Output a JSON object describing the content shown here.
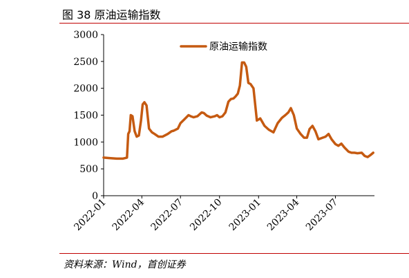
{
  "header": {
    "title": "图 38 原油运输指数"
  },
  "footer": {
    "source": "资料来源：Wind，首创证券"
  },
  "chart_data": {
    "type": "line",
    "title": "",
    "xlabel": "",
    "ylabel": "",
    "ylim": [
      0,
      3000
    ],
    "y_ticks": [
      "3000",
      "2500",
      "2000",
      "1500",
      "1000",
      "500",
      "0"
    ],
    "x_ticks": [
      "2022-01",
      "2022-04",
      "2022-07",
      "2022-10",
      "2023-01",
      "2023-04",
      "2023-07"
    ],
    "grid": false,
    "legend_position": "top-center",
    "colors": {
      "series": "#c55a11",
      "accent": "#c00000"
    },
    "series": [
      {
        "name": "原油运输指数",
        "x": [
          "2022-01-01",
          "2022-01-15",
          "2022-02-01",
          "2022-02-15",
          "2022-02-25",
          "2022-02-28",
          "2022-03-03",
          "2022-03-06",
          "2022-03-10",
          "2022-03-15",
          "2022-03-20",
          "2022-03-25",
          "2022-03-30",
          "2022-04-03",
          "2022-04-07",
          "2022-04-12",
          "2022-04-18",
          "2022-04-25",
          "2022-05-01",
          "2022-05-10",
          "2022-05-20",
          "2022-06-01",
          "2022-06-10",
          "2022-06-15",
          "2022-06-25",
          "2022-07-01",
          "2022-07-10",
          "2022-07-20",
          "2022-07-25",
          "2022-08-01",
          "2022-08-10",
          "2022-08-20",
          "2022-08-25",
          "2022-09-01",
          "2022-09-10",
          "2022-09-20",
          "2022-09-25",
          "2022-10-01",
          "2022-10-08",
          "2022-10-15",
          "2022-10-22",
          "2022-10-28",
          "2022-11-03",
          "2022-11-08",
          "2022-11-13",
          "2022-11-18",
          "2022-11-23",
          "2022-11-28",
          "2022-12-03",
          "2022-12-08",
          "2022-12-13",
          "2022-12-20",
          "2022-12-28",
          "2023-01-05",
          "2023-01-15",
          "2023-01-25",
          "2023-02-05",
          "2023-02-15",
          "2023-02-25",
          "2023-03-05",
          "2023-03-12",
          "2023-03-18",
          "2023-03-25",
          "2023-04-01",
          "2023-04-10",
          "2023-04-18",
          "2023-04-25",
          "2023-05-01",
          "2023-05-08",
          "2023-05-15",
          "2023-05-22",
          "2023-06-01",
          "2023-06-08",
          "2023-06-15",
          "2023-06-22",
          "2023-07-01",
          "2023-07-08",
          "2023-07-15",
          "2023-07-22",
          "2023-08-01",
          "2023-08-08",
          "2023-08-15",
          "2023-08-22",
          "2023-09-01",
          "2023-09-08",
          "2023-09-15",
          "2023-09-22",
          "2023-09-28"
        ],
        "values": [
          710,
          700,
          690,
          690,
          710,
          1150,
          1200,
          1500,
          1480,
          1200,
          1100,
          1120,
          1400,
          1700,
          1740,
          1680,
          1250,
          1180,
          1150,
          1100,
          1100,
          1150,
          1200,
          1210,
          1250,
          1350,
          1420,
          1500,
          1480,
          1460,
          1480,
          1550,
          1540,
          1490,
          1460,
          1480,
          1500,
          1460,
          1480,
          1550,
          1750,
          1800,
          1810,
          1850,
          1900,
          2050,
          2480,
          2480,
          2400,
          2100,
          2080,
          2000,
          1400,
          1440,
          1300,
          1230,
          1180,
          1350,
          1450,
          1500,
          1550,
          1630,
          1500,
          1250,
          1150,
          1080,
          1080,
          1240,
          1300,
          1200,
          1050,
          1080,
          1100,
          1150,
          1050,
          960,
          930,
          970,
          900,
          820,
          800,
          800,
          790,
          800,
          740,
          720,
          760,
          800
        ]
      }
    ]
  }
}
